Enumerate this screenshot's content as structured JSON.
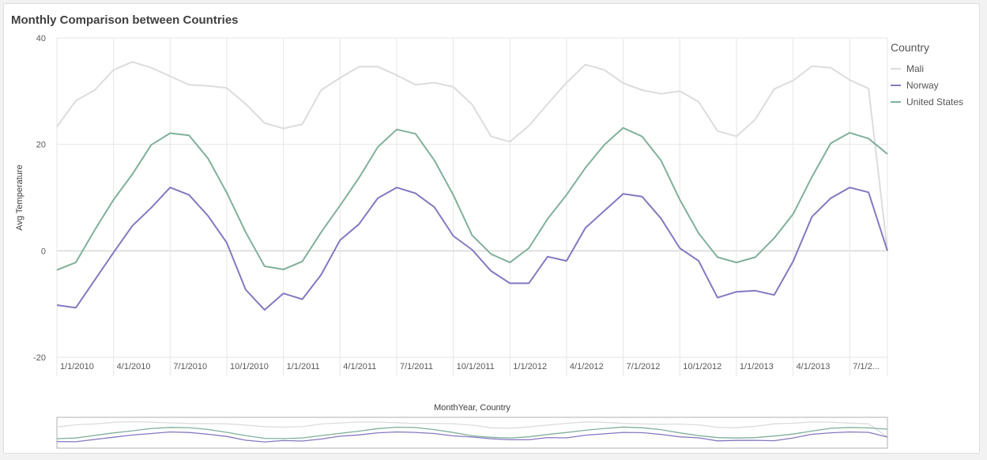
{
  "title": "Monthly Comparison between Countries",
  "colors": {
    "Mali": "#dcdcdc",
    "Norway": "#8677c1",
    "United States": "#80b09a",
    "grid": "#e6e6e6",
    "zero_line": "#c8c8c8",
    "axis_text": "#595959"
  },
  "legend": {
    "title": "Country",
    "position": "right"
  },
  "chart_data": {
    "type": "line",
    "title": "Monthly Comparison between Countries",
    "xlabel": "MonthYear, Country",
    "ylabel": "Avg Temperature",
    "ylim": [
      -20,
      40
    ],
    "yticks": [
      40,
      20,
      0,
      -20
    ],
    "grid": true,
    "x": [
      "1/1/2010",
      "2/1/2010",
      "3/1/2010",
      "4/1/2010",
      "5/1/2010",
      "6/1/2010",
      "7/1/2010",
      "8/1/2010",
      "9/1/2010",
      "10/1/2010",
      "11/1/2010",
      "12/1/2010",
      "1/1/2011",
      "2/1/2011",
      "3/1/2011",
      "4/1/2011",
      "5/1/2011",
      "6/1/2011",
      "7/1/2011",
      "8/1/2011",
      "9/1/2011",
      "10/1/2011",
      "11/1/2011",
      "12/1/2011",
      "1/1/2012",
      "2/1/2012",
      "3/1/2012",
      "4/1/2012",
      "5/1/2012",
      "6/1/2012",
      "7/1/2012",
      "8/1/2012",
      "9/1/2012",
      "10/1/2012",
      "11/1/2012",
      "12/1/2012",
      "1/1/2013",
      "2/1/2013",
      "3/1/2013",
      "4/1/2013",
      "5/1/2013",
      "6/1/2013",
      "7/1/2013",
      "8/1/2013",
      "9/1/2013"
    ],
    "x_tick_labels": [
      "1/1/2010",
      "4/1/2010",
      "7/1/2010",
      "10/1/2010",
      "1/1/2011",
      "4/1/2011",
      "7/1/2011",
      "10/1/2011",
      "1/1/2012",
      "4/1/2012",
      "7/1/2012",
      "10/1/2012",
      "1/1/2013",
      "4/1/2013",
      "7/1/2..."
    ],
    "x_tick_every": 3,
    "series": [
      {
        "name": "Mali",
        "values": [
          23.3,
          28.2,
          30.2,
          34.0,
          35.5,
          34.4,
          32.8,
          31.2,
          31.0,
          30.6,
          27.6,
          24.0,
          23.0,
          23.8,
          30.2,
          32.5,
          34.6,
          34.6,
          33.0,
          31.2,
          31.6,
          30.8,
          27.5,
          21.5,
          20.5,
          23.5,
          27.6,
          31.6,
          35.0,
          34.0,
          31.5,
          30.2,
          29.5,
          30.0,
          28.0,
          22.5,
          21.5,
          24.7,
          30.4,
          32.0,
          34.7,
          34.4,
          32.1,
          30.5,
          0.0
        ]
      },
      {
        "name": "Norway",
        "values": [
          -10.2,
          -10.7,
          -5.5,
          -0.3,
          4.7,
          8.1,
          11.9,
          10.5,
          6.6,
          1.5,
          -7.3,
          -11.1,
          -8.0,
          -9.1,
          -4.5,
          2.0,
          5.0,
          9.9,
          11.9,
          10.8,
          8.2,
          2.8,
          0.2,
          -3.8,
          -6.1,
          -6.1,
          -1.1,
          -1.9,
          4.3,
          7.5,
          10.7,
          10.2,
          6.1,
          0.5,
          -1.9,
          -8.8,
          -7.7,
          -7.5,
          -8.3,
          -2.0,
          6.4,
          9.9,
          11.9,
          11.0,
          0.0
        ]
      },
      {
        "name": "United States",
        "values": [
          -3.6,
          -2.2,
          3.9,
          9.6,
          14.4,
          19.9,
          22.1,
          21.7,
          17.4,
          10.9,
          3.5,
          -2.9,
          -3.5,
          -2.0,
          3.5,
          8.5,
          13.7,
          19.5,
          22.8,
          22.0,
          17.0,
          10.5,
          2.9,
          -0.6,
          -2.2,
          0.5,
          6.0,
          10.5,
          15.6,
          19.9,
          23.1,
          21.5,
          17.0,
          9.6,
          3.3,
          -1.2,
          -2.2,
          -1.2,
          2.4,
          6.9,
          13.9,
          20.2,
          22.2,
          21.1,
          18.2
        ]
      }
    ]
  }
}
